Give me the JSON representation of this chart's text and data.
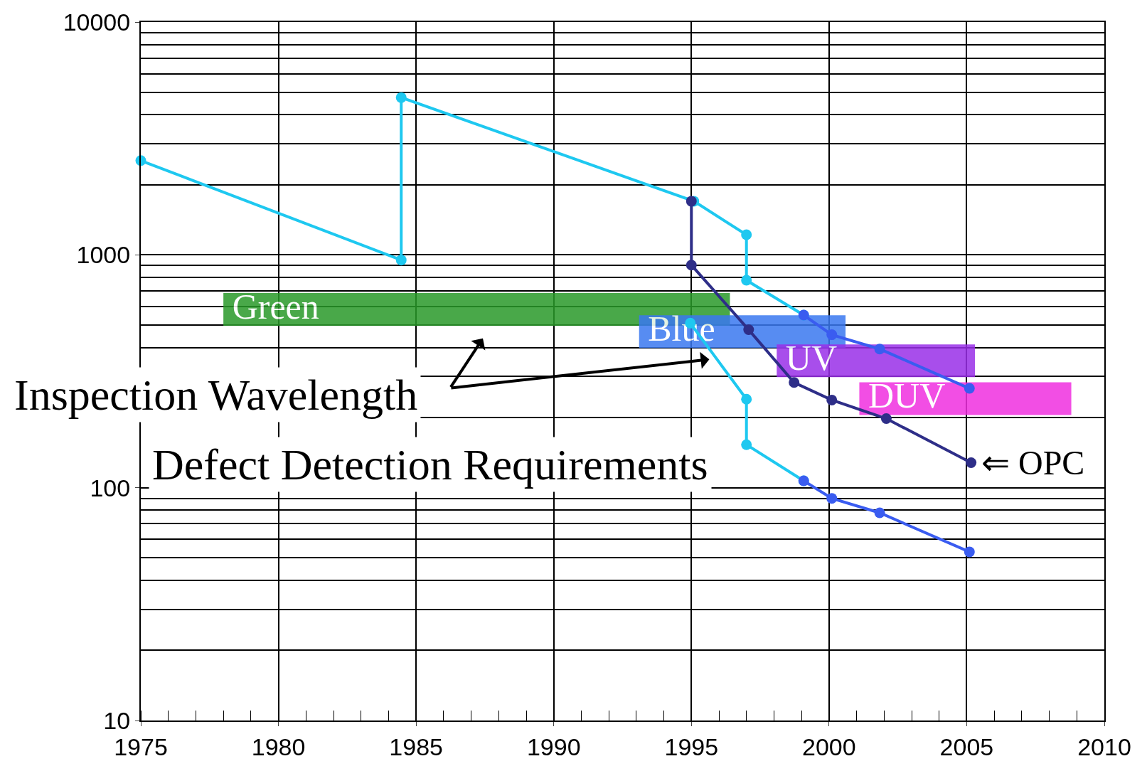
{
  "chart_data": {
    "type": "line",
    "log": "y",
    "grid": true,
    "xlim": [
      1975,
      2010
    ],
    "xticks": [
      1975,
      1980,
      1985,
      1990,
      1995,
      2000,
      2005,
      2010
    ],
    "ylim": [
      10,
      10000
    ],
    "yticks": [
      10,
      100,
      1000,
      10000
    ],
    "series": [
      {
        "name": "Green",
        "marker": "none",
        "color": "#2a9a2a",
        "x": [
          1978,
          1996.4
        ],
        "values": [
          583,
          583
        ]
      },
      {
        "name": "Blue",
        "marker": "none",
        "color": "#3a78f0",
        "x": [
          1993.1,
          2000.6
        ],
        "values": [
          468,
          468
        ]
      },
      {
        "name": "UV",
        "marker": "none",
        "color": "#9a30e8",
        "x": [
          1998.1,
          2005.3
        ],
        "values": [
          351,
          351
        ]
      },
      {
        "name": "DUV",
        "marker": "none",
        "color": "#f030e0",
        "x": [
          2001.1,
          2008.8
        ],
        "values": [
          241,
          241
        ]
      },
      {
        "color": "#1ec8f0",
        "marker": "circle",
        "x": [
          1975,
          1984.46,
          1984.46,
          1995.09,
          1997.0,
          1997.0,
          1999.08
        ],
        "values": [
          2540,
          950,
          4740,
          1700,
          1220,
          778,
          551
        ]
      },
      {
        "color": "#3a5cf0",
        "marker": "circle",
        "x": [
          1999.08,
          2000.1,
          2001.84,
          2005.1
        ],
        "values": [
          551,
          454,
          394,
          267
        ]
      },
      {
        "color": "#2e2e88",
        "marker": "circle",
        "x": [
          1995.0,
          1995.0,
          1997.08,
          1998.73,
          2000.1,
          2002.08,
          2005.16
        ],
        "values": [
          1700,
          904,
          477,
          283,
          238,
          198,
          128
        ]
      },
      {
        "color": "#1ec8f0",
        "marker": "circle",
        "x": [
          1994.96,
          1997.0,
          1997.0,
          1999.08
        ],
        "values": [
          509,
          240,
          153,
          107
        ]
      },
      {
        "color": "#3a5cf0",
        "marker": "circle",
        "x": [
          1999.08,
          2000.1,
          2001.84,
          2005.1
        ],
        "values": [
          107,
          90,
          78,
          53
        ]
      }
    ],
    "annotations": [
      {
        "text": "⇐ OPC",
        "x": 2005.16,
        "y": 128
      },
      "Inspection Wavelength",
      "Defect Detection Requirements"
    ]
  }
}
